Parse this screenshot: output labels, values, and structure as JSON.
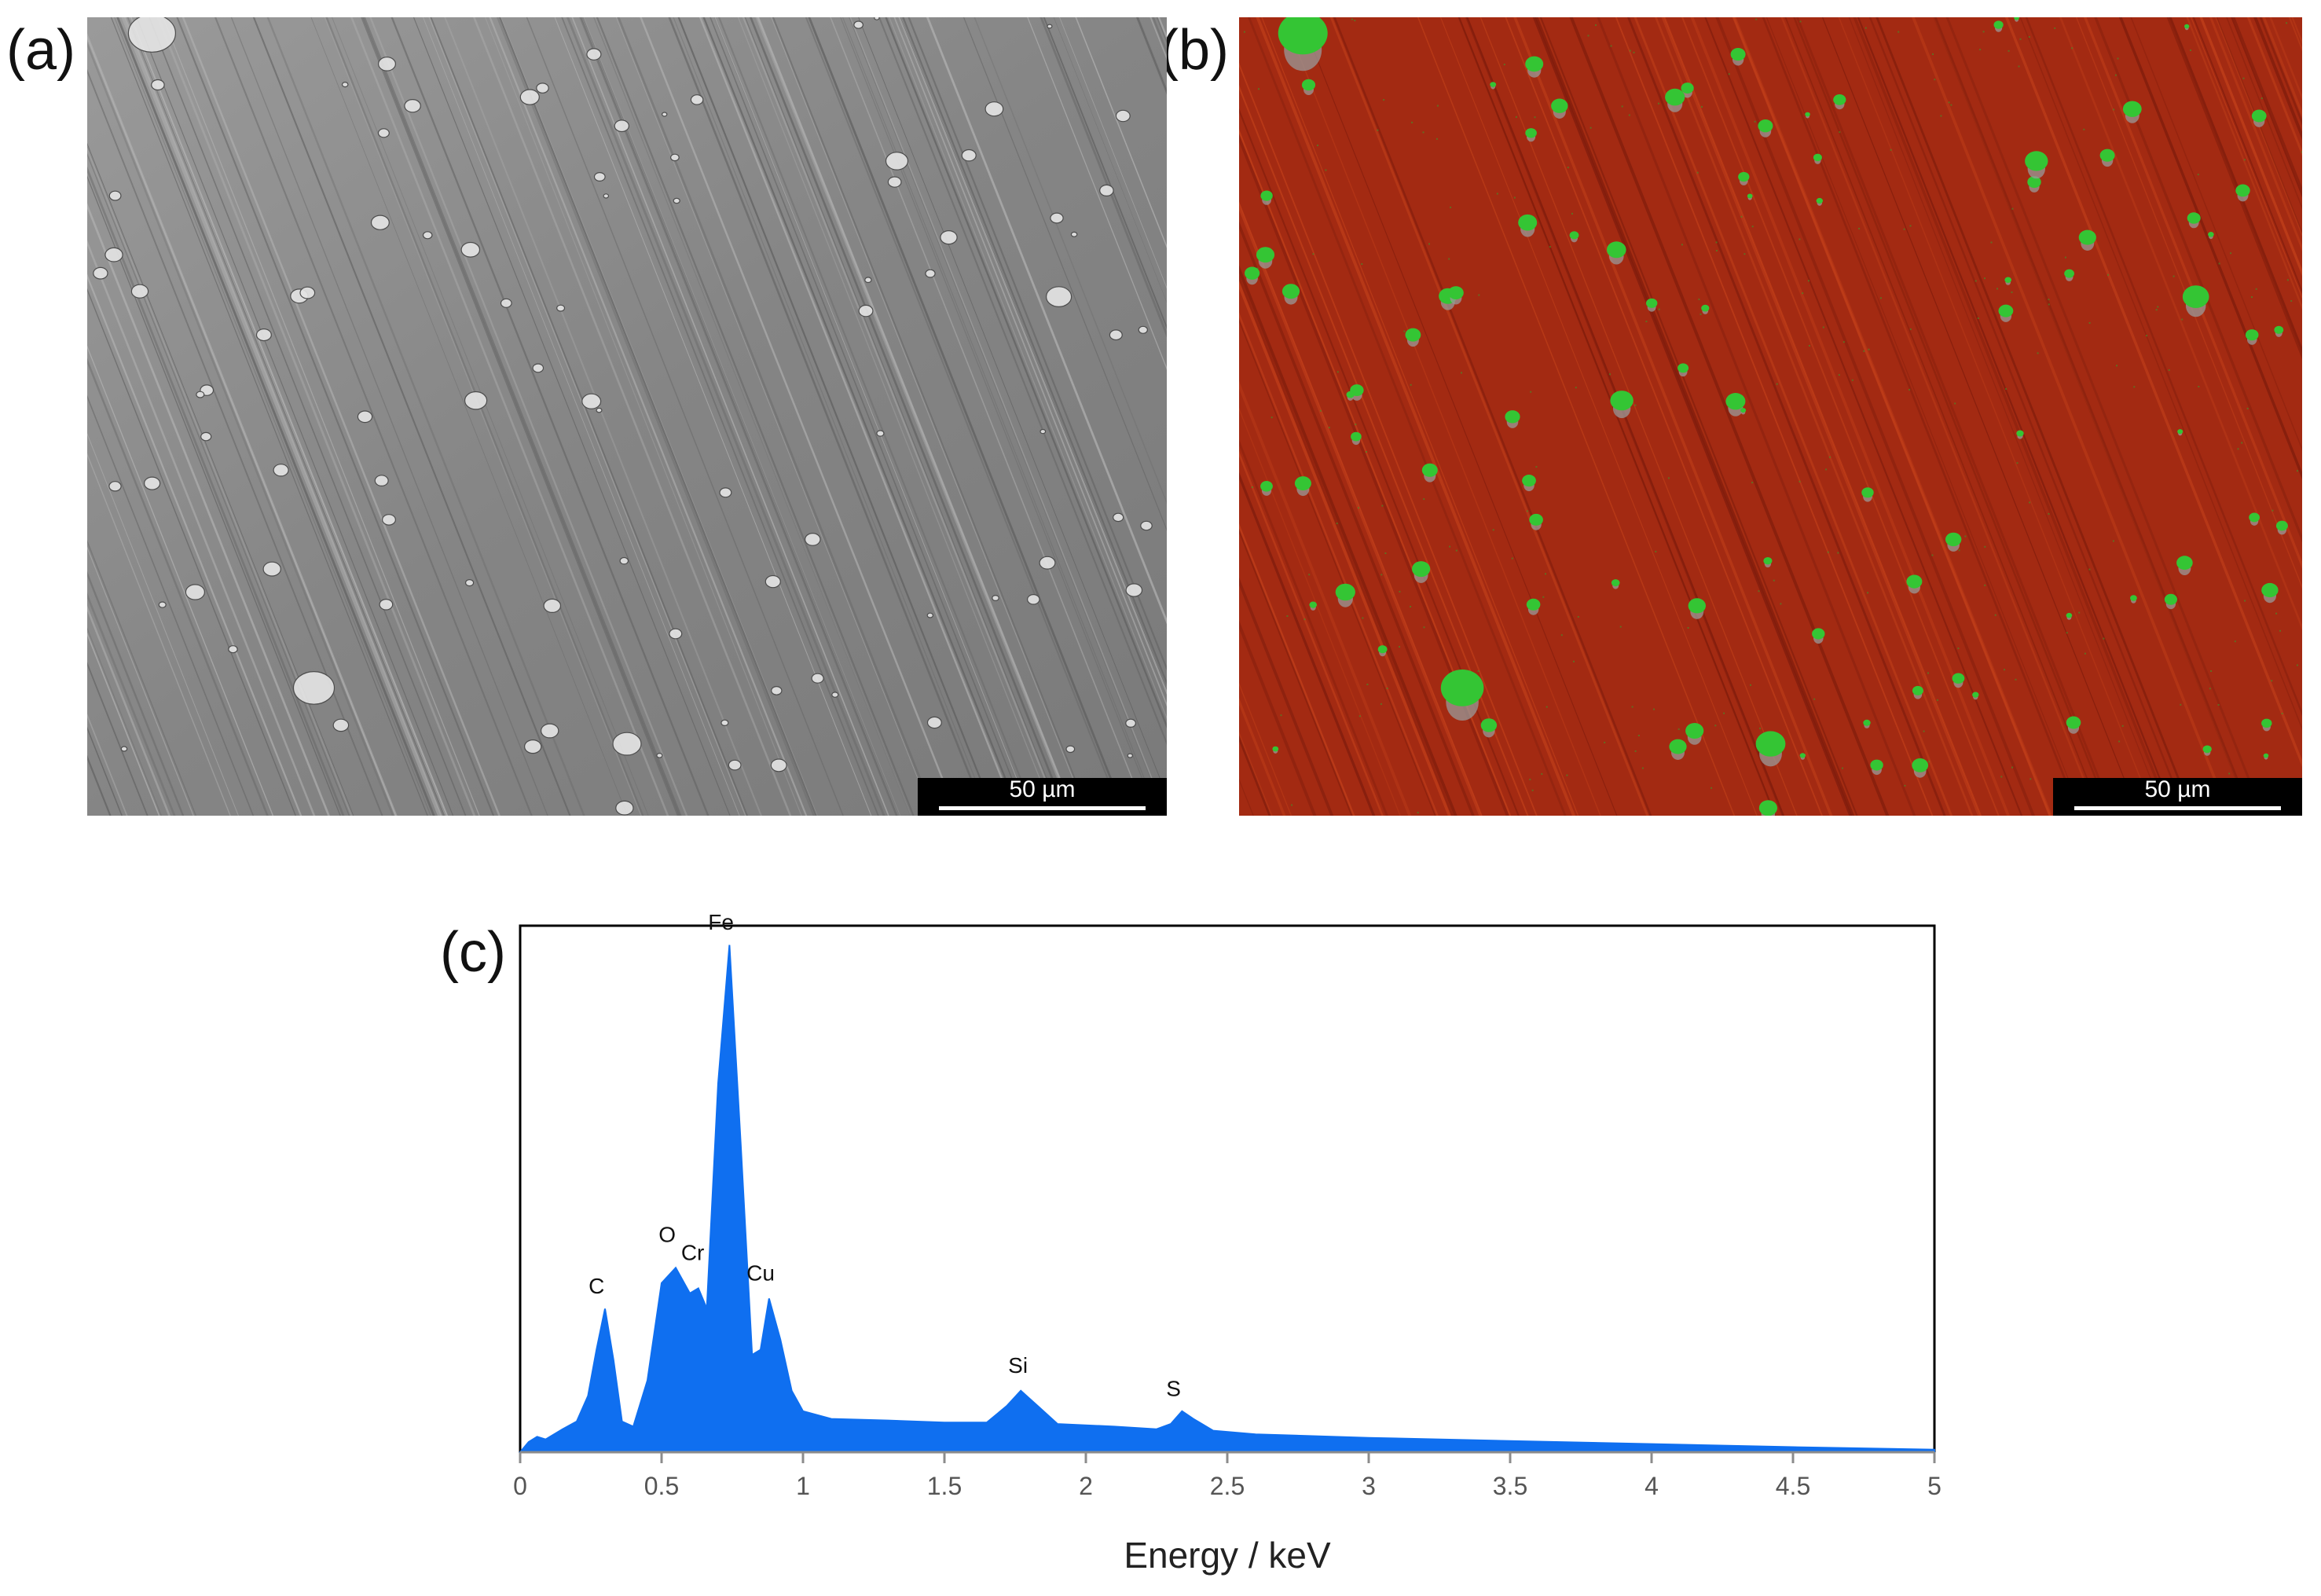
{
  "panels": {
    "a": {
      "label": "(a)",
      "scalebar": "50 µm"
    },
    "b": {
      "label": "(b)",
      "scalebar": "50 µm"
    },
    "c": {
      "label": "(c)"
    }
  },
  "colors": {
    "sem_background": "#8a8a8a",
    "map_background": "#a32a12",
    "map_particles": "#34c534",
    "spectrum_fill": "#0f6ff0"
  },
  "chart_data": {
    "type": "area",
    "title": "",
    "xlabel": "Energy / keV",
    "ylabel": "",
    "xlim": [
      0,
      5
    ],
    "ylim": [
      0,
      1
    ],
    "xticks": [
      "0",
      "0.5",
      "1",
      "1.5",
      "2",
      "2.5",
      "3",
      "3.5",
      "4",
      "4.5",
      "5"
    ],
    "grid": false,
    "series": [
      {
        "x": [
          0,
          0.03,
          0.06,
          0.09,
          0.12,
          0.15,
          0.2,
          0.24,
          0.27,
          0.3,
          0.33,
          0.36,
          0.4,
          0.45,
          0.5,
          0.55,
          0.6,
          0.63,
          0.66,
          0.7,
          0.74,
          0.78,
          0.82,
          0.85,
          0.88,
          0.92,
          0.96,
          1.0,
          1.1,
          1.3,
          1.5,
          1.65,
          1.72,
          1.77,
          1.83,
          1.9,
          2.1,
          2.25,
          2.3,
          2.34,
          2.38,
          2.45,
          2.6,
          3.0,
          3.5,
          4.0,
          4.5,
          5.0
        ],
        "y": [
          0.0,
          0.02,
          0.03,
          0.025,
          0.035,
          0.045,
          0.06,
          0.11,
          0.2,
          0.28,
          0.18,
          0.06,
          0.05,
          0.14,
          0.33,
          0.36,
          0.31,
          0.32,
          0.28,
          0.72,
          0.99,
          0.6,
          0.19,
          0.2,
          0.3,
          0.22,
          0.12,
          0.08,
          0.065,
          0.062,
          0.058,
          0.058,
          0.09,
          0.12,
          0.09,
          0.055,
          0.05,
          0.045,
          0.055,
          0.08,
          0.065,
          0.042,
          0.035,
          0.028,
          0.022,
          0.016,
          0.01,
          0.005
        ]
      }
    ],
    "annotations": [
      {
        "text": "C",
        "x": 0.27,
        "y": 0.31
      },
      {
        "text": "O",
        "x": 0.52,
        "y": 0.41
      },
      {
        "text": "Cr",
        "x": 0.61,
        "y": 0.375
      },
      {
        "text": "Cu",
        "x": 0.85,
        "y": 0.335
      },
      {
        "text": "Fe",
        "x": 0.71,
        "y": 1.02
      },
      {
        "text": "Si",
        "x": 1.76,
        "y": 0.155
      },
      {
        "text": "S",
        "x": 2.31,
        "y": 0.11
      }
    ]
  }
}
